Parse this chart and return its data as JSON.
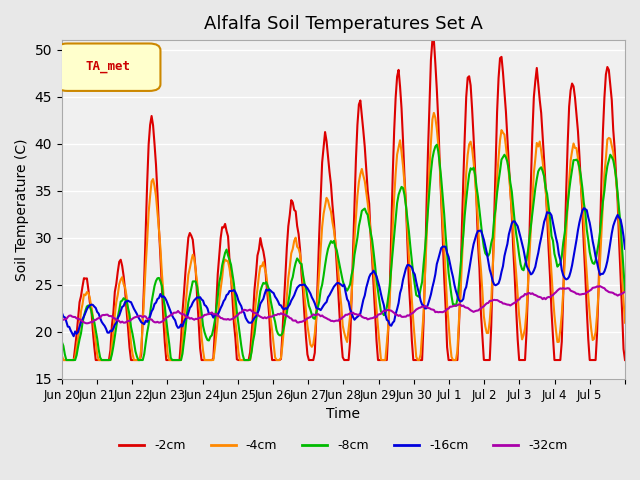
{
  "title": "Alfalfa Soil Temperatures Set A",
  "xlabel": "Time",
  "ylabel": "Soil Temperature (C)",
  "ylim": [
    15,
    51
  ],
  "yticks": [
    15,
    20,
    25,
    30,
    35,
    40,
    45,
    50
  ],
  "colors": {
    "-2cm": "#dd0000",
    "-4cm": "#ff8800",
    "-8cm": "#00bb00",
    "-16cm": "#0000dd",
    "-32cm": "#aa00aa"
  },
  "legend_label": "TA_met",
  "legend_box_color": "#ffffcc",
  "legend_box_edge": "#cc8800",
  "background_color": "#e8e8e8",
  "plot_bg_color": "#f0f0f0",
  "linewidth": 1.5,
  "x_tick_positions": [
    0,
    1,
    2,
    3,
    4,
    5,
    6,
    7,
    8,
    9,
    10,
    11,
    12,
    13,
    14,
    15,
    16
  ],
  "x_tick_labels": [
    "Jun 20",
    "Jun 21",
    "Jun 22",
    "Jun 23",
    "Jun 24",
    "Jun 25",
    "Jun 26",
    "Jun 27",
    "Jun 28",
    "Jun 29",
    "Jun 30",
    "Jul 1",
    "Jul 2",
    "Jul 3",
    "Jul 4",
    "Jul 5",
    ""
  ]
}
